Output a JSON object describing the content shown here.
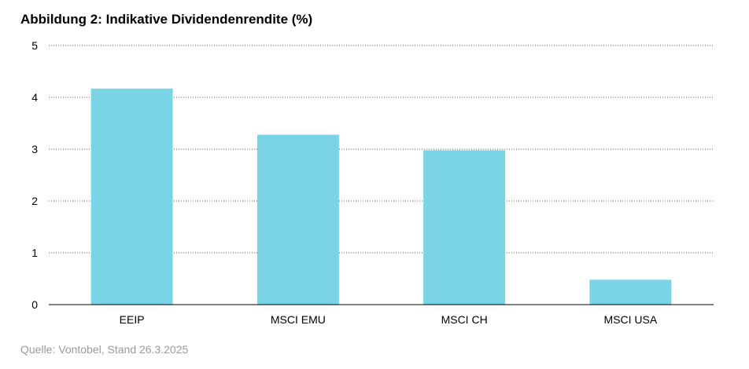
{
  "chart_data": {
    "type": "bar",
    "title": "Abbildung 2: Indikative Dividendenrendite (%)",
    "categories": [
      "EEIP",
      "MSCI EMU",
      "MSCI CH",
      "MSCI USA"
    ],
    "values": [
      4.17,
      3.28,
      2.98,
      0.48
    ],
    "ylim": [
      0,
      5
    ],
    "yticks": [
      "0",
      "1",
      "2",
      "3",
      "4",
      "5"
    ],
    "grid": true,
    "grid_style": "dotted",
    "bar_color": "#7bd3e6",
    "axis_color": "#000000",
    "grid_color": "#555555"
  },
  "footer": {
    "source": "Quelle: Vontobel, Stand 26.3.2025"
  }
}
